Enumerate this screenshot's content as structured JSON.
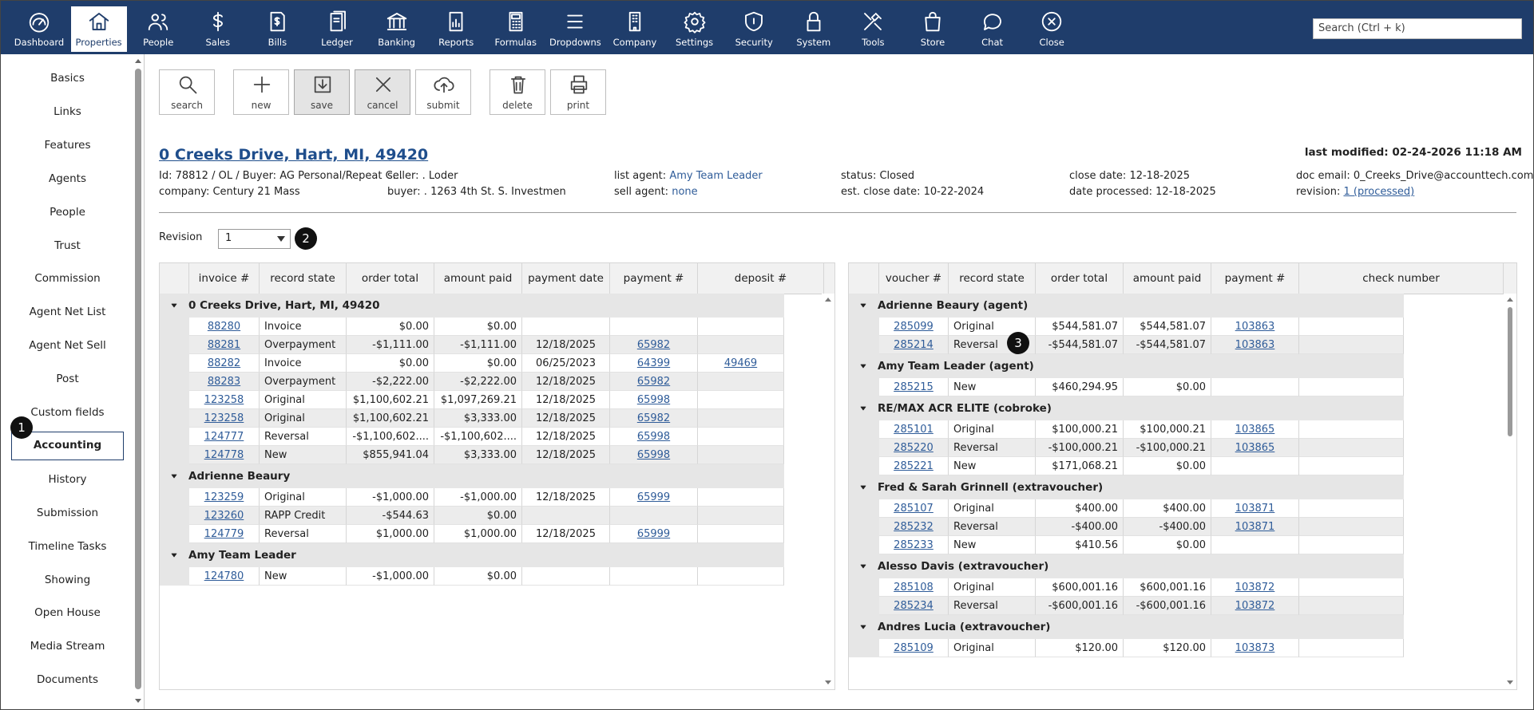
{
  "nav": {
    "items": [
      "Dashboard",
      "Properties",
      "People",
      "Sales",
      "Bills",
      "Ledger",
      "Banking",
      "Reports",
      "Formulas",
      "Dropdowns",
      "Company",
      "Settings",
      "Security",
      "System",
      "Tools",
      "Store",
      "Chat",
      "Close"
    ],
    "active": 1,
    "search_placeholder": "Search (Ctrl + k)"
  },
  "sidebar": {
    "items": [
      "Basics",
      "Links",
      "Features",
      "Agents",
      "People",
      "Trust",
      "Commission",
      "Agent Net List",
      "Agent Net Sell",
      "Post",
      "Custom fields",
      "Accounting",
      "History",
      "Submission",
      "Timeline Tasks",
      "Showing",
      "Open House",
      "Media Stream",
      "Documents"
    ],
    "active": 11
  },
  "badges": [
    "1",
    "2",
    "3"
  ],
  "toolbar": [
    "search",
    "new",
    "save",
    "cancel",
    "submit",
    "delete",
    "print"
  ],
  "header": {
    "title": "0 Creeks Drive, Hart, MI, 49420",
    "last_modified": "last modified: 02-24-2026 11:18 AM",
    "info": [
      {
        "text": "Id: 78812 / OL / Buyer: AG Personal/Repeat C..."
      },
      {
        "text": "company: Century 21 Mass"
      },
      {
        "text": "seller: . Loder"
      },
      {
        "text": "buyer: . 1263 4th St. S. Investmen"
      },
      {
        "text": "list agent:",
        "link": "Amy Team Leader"
      },
      {
        "text": "sell agent:",
        "link": "none"
      },
      {
        "text": "status: Closed"
      },
      {
        "text": "est. close date: 10-22-2024"
      },
      {
        "text": "close date: 12-18-2025"
      },
      {
        "text": "date processed: 12-18-2025"
      },
      {
        "text": "doc email: 0_Creeks_Drive@accounttech.com"
      },
      {
        "text": "revision:",
        "link": "1 (processed)"
      }
    ]
  },
  "revision": {
    "label": "Revision",
    "value": "1"
  },
  "left_table": {
    "columns": [
      "invoice #",
      "record state",
      "order total",
      "amount paid",
      "payment date",
      "payment #",
      "deposit #"
    ],
    "groups": [
      {
        "name": "0 Creeks Drive, Hart, MI, 49420",
        "rows": [
          [
            "88280",
            "Invoice",
            "$0.00",
            "$0.00",
            null,
            null,
            null
          ],
          [
            "88281",
            "Overpayment",
            "-$1,111.00",
            "-$1,111.00",
            "12/18/2025",
            "65982",
            null
          ],
          [
            "88282",
            "Invoice",
            "$0.00",
            "$0.00",
            "06/25/2023",
            "64399",
            "49469"
          ],
          [
            "88283",
            "Overpayment",
            "-$2,222.00",
            "-$2,222.00",
            "12/18/2025",
            "65982",
            null
          ],
          [
            "123258",
            "Original",
            "$1,100,602.21",
            "$1,097,269.21",
            "12/18/2025",
            "65998",
            null
          ],
          [
            "123258",
            "Original",
            "$1,100,602.21",
            "$3,333.00",
            "12/18/2025",
            "65982",
            null
          ],
          [
            "124777",
            "Reversal",
            "-$1,100,602....",
            "-$1,100,602....",
            "12/18/2025",
            "65998",
            null
          ],
          [
            "124778",
            "New",
            "$855,941.04",
            "$3,333.00",
            "12/18/2025",
            "65998",
            null
          ]
        ]
      },
      {
        "name": "Adrienne Beaury",
        "rows": [
          [
            "123259",
            "Original",
            "-$1,000.00",
            "-$1,000.00",
            "12/18/2025",
            "65999",
            null
          ],
          [
            "123260",
            "RAPP Credit",
            "-$544.63",
            "$0.00",
            null,
            null,
            null
          ],
          [
            "124779",
            "Reversal",
            "$1,000.00",
            "$1,000.00",
            "12/18/2025",
            "65999",
            null
          ]
        ]
      },
      {
        "name": "Amy Team Leader",
        "rows": [
          [
            "124780",
            "New",
            "-$1,000.00",
            "$0.00",
            null,
            null,
            null
          ]
        ]
      }
    ]
  },
  "right_table": {
    "columns": [
      "voucher #",
      "record state",
      "order total",
      "amount paid",
      "payment #",
      "check number"
    ],
    "groups": [
      {
        "name": "Adrienne Beaury (agent)",
        "rows": [
          [
            "285099",
            "Original",
            "$544,581.07",
            "$544,581.07",
            "103863",
            null
          ],
          [
            "285214",
            "Reversal",
            "-$544,581.07",
            "-$544,581.07",
            "103863",
            null
          ]
        ]
      },
      {
        "name": "Amy Team Leader (agent)",
        "rows": [
          [
            "285215",
            "New",
            "$460,294.95",
            "$0.00",
            null,
            null
          ]
        ]
      },
      {
        "name": "RE/MAX ACR ELITE (cobroke)",
        "rows": [
          [
            "285101",
            "Original",
            "$100,000.21",
            "$100,000.21",
            "103865",
            null
          ],
          [
            "285220",
            "Reversal",
            "-$100,000.21",
            "-$100,000.21",
            "103865",
            null
          ],
          [
            "285221",
            "New",
            "$171,068.21",
            "$0.00",
            null,
            null
          ]
        ]
      },
      {
        "name": "Fred & Sarah Grinnell (extravoucher)",
        "rows": [
          [
            "285107",
            "Original",
            "$400.00",
            "$400.00",
            "103871",
            null
          ],
          [
            "285232",
            "Reversal",
            "-$400.00",
            "-$400.00",
            "103871",
            null
          ],
          [
            "285233",
            "New",
            "$410.56",
            "$0.00",
            null,
            null
          ]
        ]
      },
      {
        "name": "Alesso Davis (extravoucher)",
        "rows": [
          [
            "285108",
            "Original",
            "$600,001.16",
            "$600,001.16",
            "103872",
            null
          ],
          [
            "285234",
            "Reversal",
            "-$600,001.16",
            "-$600,001.16",
            "103872",
            null
          ]
        ]
      },
      {
        "name": "Andres Lucia (extravoucher)",
        "rows": [
          [
            "285109",
            "Original",
            "$120.00",
            "$120.00",
            "103873",
            null
          ]
        ]
      }
    ]
  }
}
